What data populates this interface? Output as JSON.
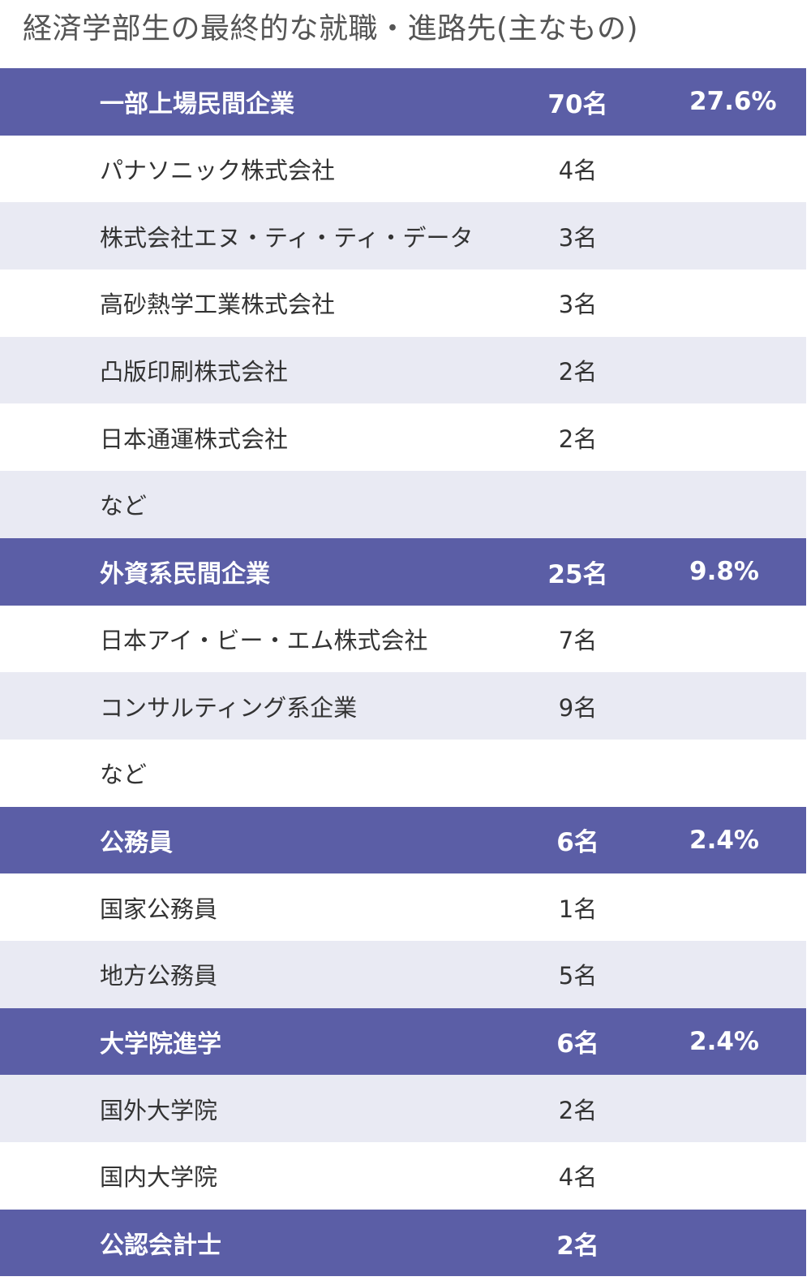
{
  "title": "経済学部生の最終的な就職・進路先(主なもの)",
  "colors": {
    "category_bg": "#5b5ea6",
    "alt_row_bg": "#e9eaf3",
    "text": "#333333"
  },
  "rows": [
    {
      "name": "一部上場民間企業",
      "count": "70名",
      "percent": "27.6%"
    },
    {
      "name": "パナソニック株式会社",
      "count": "4名",
      "percent": ""
    },
    {
      "name": "株式会社エヌ・ティ・ティ・データ",
      "count": "3名",
      "percent": ""
    },
    {
      "name": "高砂熱学工業株式会社",
      "count": "3名",
      "percent": ""
    },
    {
      "name": "凸版印刷株式会社",
      "count": "2名",
      "percent": ""
    },
    {
      "name": "日本通運株式会社",
      "count": "2名",
      "percent": ""
    },
    {
      "name": "など",
      "count": "",
      "percent": ""
    },
    {
      "name": "外資系民間企業",
      "count": "25名",
      "percent": "9.8%"
    },
    {
      "name": "日本アイ・ビー・エム株式会社",
      "count": "7名",
      "percent": ""
    },
    {
      "name": "コンサルティング系企業",
      "count": "9名",
      "percent": ""
    },
    {
      "name": "など",
      "count": "",
      "percent": ""
    },
    {
      "name": "公務員",
      "count": "6名",
      "percent": "2.4%"
    },
    {
      "name": "国家公務員",
      "count": "1名",
      "percent": ""
    },
    {
      "name": "地方公務員",
      "count": "5名",
      "percent": ""
    },
    {
      "name": "大学院進学",
      "count": "6名",
      "percent": "2.4%"
    },
    {
      "name": "国外大学院",
      "count": "2名",
      "percent": ""
    },
    {
      "name": "国内大学院",
      "count": "4名",
      "percent": ""
    },
    {
      "name": "公認会計士",
      "count": "2名",
      "percent": ""
    }
  ]
}
